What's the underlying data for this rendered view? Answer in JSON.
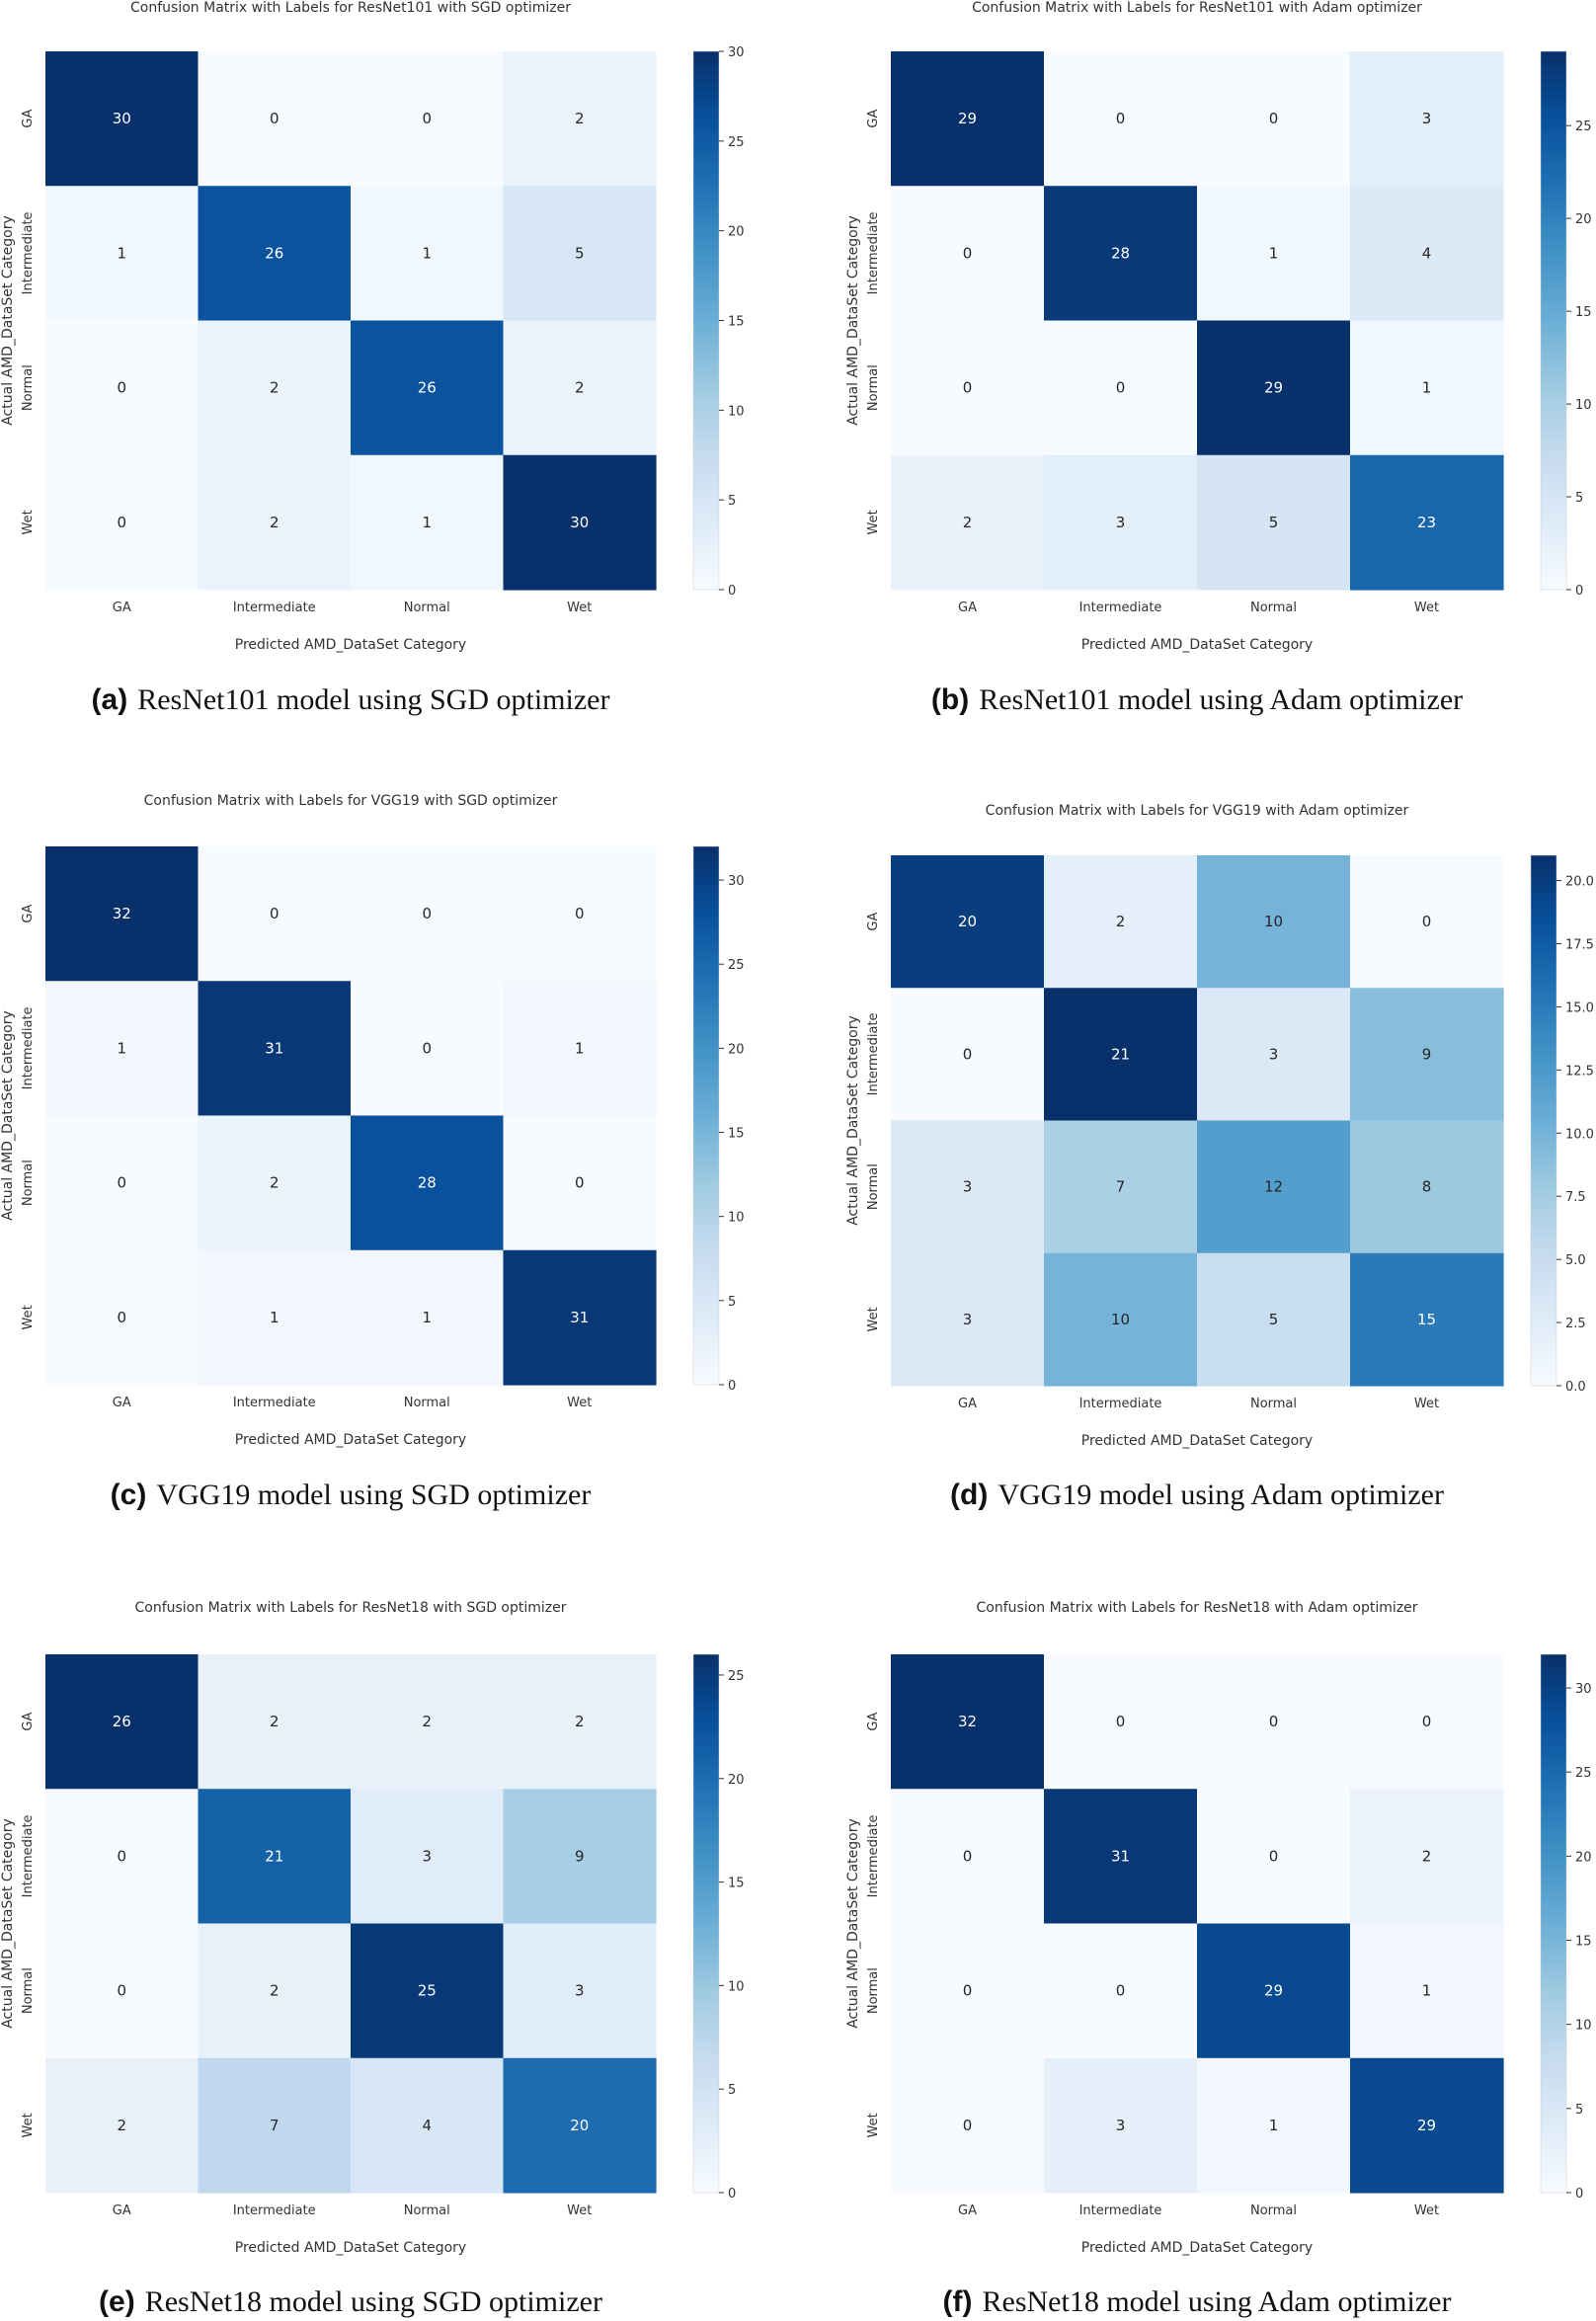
{
  "colormap": {
    "light": "#f7fbff",
    "dark": "#08306b",
    "name": "Blues"
  },
  "chart_data": [
    {
      "type": "heatmap",
      "panel": "a",
      "title": "Confusion Matrix with Labels for ResNet101 with SGD optimizer",
      "caption_letter": "(a)",
      "caption_text": "ResNet101 model using SGD optimizer",
      "xlabel": "Predicted AMD_DataSet Category",
      "ylabel": "Actual AMD_DataSet Category",
      "categories": [
        "GA",
        "Intermediate",
        "Normal",
        "Wet"
      ],
      "matrix": [
        [
          30,
          0,
          0,
          2
        ],
        [
          1,
          26,
          1,
          5
        ],
        [
          0,
          2,
          26,
          2
        ],
        [
          0,
          2,
          1,
          30
        ]
      ],
      "vmin": 0,
      "vmax": 30,
      "colorbar_ticks": [
        0,
        5,
        10,
        15,
        20,
        25,
        30
      ],
      "colorbar_labels": [
        "0",
        "5",
        "10",
        "15",
        "20",
        "25",
        "30"
      ]
    },
    {
      "type": "heatmap",
      "panel": "b",
      "title": "Confusion Matrix with Labels for ResNet101 with Adam optimizer",
      "caption_letter": "(b)",
      "caption_text": "ResNet101 model using Adam optimizer",
      "xlabel": "Predicted AMD_DataSet Category",
      "ylabel": "Actual AMD_DataSet Category",
      "categories": [
        "GA",
        "Intermediate",
        "Normal",
        "Wet"
      ],
      "matrix": [
        [
          29,
          0,
          0,
          3
        ],
        [
          0,
          28,
          1,
          4
        ],
        [
          0,
          0,
          29,
          1
        ],
        [
          2,
          3,
          5,
          23
        ]
      ],
      "vmin": 0,
      "vmax": 29,
      "colorbar_ticks": [
        0,
        5,
        10,
        15,
        20,
        25
      ],
      "colorbar_labels": [
        "0",
        "5",
        "10",
        "15",
        "20",
        "25"
      ]
    },
    {
      "type": "heatmap",
      "panel": "c",
      "title": "Confusion Matrix with Labels for VGG19 with SGD optimizer",
      "caption_letter": "(c)",
      "caption_text": "VGG19 model using SGD optimizer",
      "xlabel": "Predicted AMD_DataSet Category",
      "ylabel": "Actual AMD_DataSet Category",
      "categories": [
        "GA",
        "Intermediate",
        "Normal",
        "Wet"
      ],
      "matrix": [
        [
          32,
          0,
          0,
          0
        ],
        [
          1,
          31,
          0,
          1
        ],
        [
          0,
          2,
          28,
          0
        ],
        [
          0,
          1,
          1,
          31
        ]
      ],
      "vmin": 0,
      "vmax": 32,
      "colorbar_ticks": [
        0,
        5,
        10,
        15,
        20,
        25,
        30
      ],
      "colorbar_labels": [
        "0",
        "5",
        "10",
        "15",
        "20",
        "25",
        "30"
      ]
    },
    {
      "type": "heatmap",
      "panel": "d",
      "title": "Confusion Matrix with Labels for VGG19 with Adam optimizer",
      "caption_letter": "(d)",
      "caption_text": "VGG19 model using Adam optimizer",
      "xlabel": "Predicted AMD_DataSet Category",
      "ylabel": "Actual AMD_DataSet Category",
      "categories": [
        "GA",
        "Intermediate",
        "Normal",
        "Wet"
      ],
      "matrix": [
        [
          20,
          2,
          10,
          0
        ],
        [
          0,
          21,
          3,
          9
        ],
        [
          3,
          7,
          12,
          8
        ],
        [
          3,
          10,
          5,
          15
        ]
      ],
      "vmin": 0,
      "vmax": 21,
      "colorbar_ticks": [
        0,
        2.5,
        5,
        7.5,
        10,
        12.5,
        15,
        17.5,
        20
      ],
      "colorbar_labels": [
        "0.0",
        "2.5",
        "5.0",
        "7.5",
        "10.0",
        "12.5",
        "15.0",
        "17.5",
        "20.0"
      ]
    },
    {
      "type": "heatmap",
      "panel": "e",
      "title": "Confusion Matrix with Labels for ResNet18 with SGD optimizer",
      "caption_letter": "(e)",
      "caption_text": "ResNet18 model using SGD optimizer",
      "xlabel": "Predicted AMD_DataSet Category",
      "ylabel": "Actual AMD_DataSet Category",
      "categories": [
        "GA",
        "Intermediate",
        "Normal",
        "Wet"
      ],
      "matrix": [
        [
          26,
          2,
          2,
          2
        ],
        [
          0,
          21,
          3,
          9
        ],
        [
          0,
          2,
          25,
          3
        ],
        [
          2,
          7,
          4,
          20
        ]
      ],
      "vmin": 0,
      "vmax": 26,
      "colorbar_ticks": [
        0,
        5,
        10,
        15,
        20,
        25
      ],
      "colorbar_labels": [
        "0",
        "5",
        "10",
        "15",
        "20",
        "25"
      ]
    },
    {
      "type": "heatmap",
      "panel": "f",
      "title": "Confusion Matrix with Labels for ResNet18 with Adam optimizer",
      "caption_letter": "(f)",
      "caption_text": "ResNet18 model using Adam optimizer",
      "xlabel": "Predicted AMD_DataSet Category",
      "ylabel": "Actual AMD_DataSet Category",
      "categories": [
        "GA",
        "Intermediate",
        "Normal",
        "Wet"
      ],
      "matrix": [
        [
          32,
          0,
          0,
          0
        ],
        [
          0,
          31,
          0,
          2
        ],
        [
          0,
          0,
          29,
          1
        ],
        [
          0,
          3,
          1,
          29
        ]
      ],
      "vmin": 0,
      "vmax": 32,
      "colorbar_ticks": [
        0,
        5,
        10,
        15,
        20,
        25,
        30
      ],
      "colorbar_labels": [
        "0",
        "5",
        "10",
        "15",
        "20",
        "25",
        "30"
      ]
    }
  ]
}
